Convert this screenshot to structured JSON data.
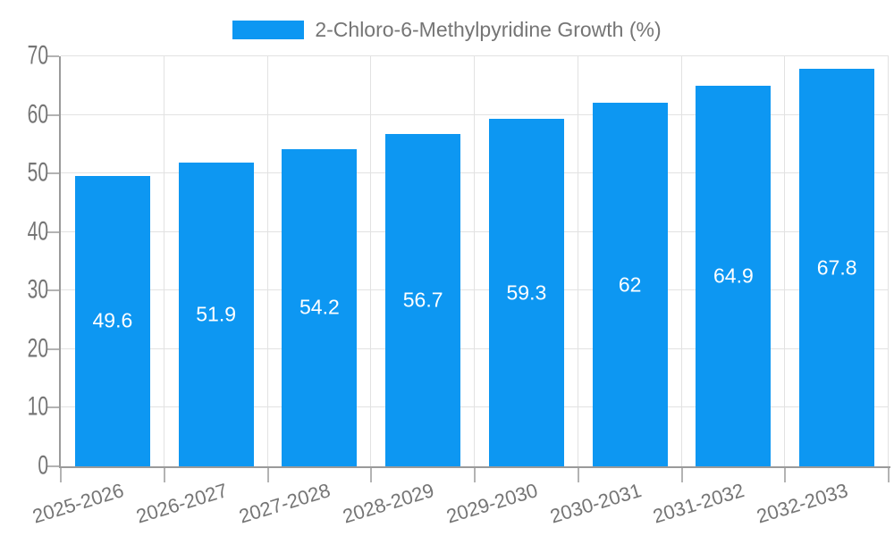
{
  "legend": {
    "label": "2-Chloro-6-Methylpyridine Growth (%)"
  },
  "chart_data": {
    "type": "bar",
    "title": "2-Chloro-6-Methylpyridine Growth (%)",
    "categories": [
      "2025-2026",
      "2026-2027",
      "2027-2028",
      "2028-2029",
      "2029-2030",
      "2030-2031",
      "2031-2032",
      "2032-2033"
    ],
    "values": [
      49.6,
      51.9,
      54.2,
      56.7,
      59.3,
      62,
      64.9,
      67.8
    ],
    "value_labels": [
      "49.6",
      "51.9",
      "54.2",
      "56.7",
      "59.3",
      "62",
      "64.9",
      "67.8"
    ],
    "xlabel": "",
    "ylabel": "",
    "ylim": [
      0,
      70
    ],
    "y_ticks": [
      0,
      10,
      20,
      30,
      40,
      50,
      60,
      70
    ],
    "grid": "on",
    "legend_position": "top-center",
    "colors": {
      "bar": "#0d97f2",
      "axis": "#9a9a9a",
      "gridline": "#e2e2e2",
      "tick": "#b3b3b3",
      "axis_label": "#757575",
      "value_label": "#ffffff",
      "background": "#ffffff"
    }
  }
}
